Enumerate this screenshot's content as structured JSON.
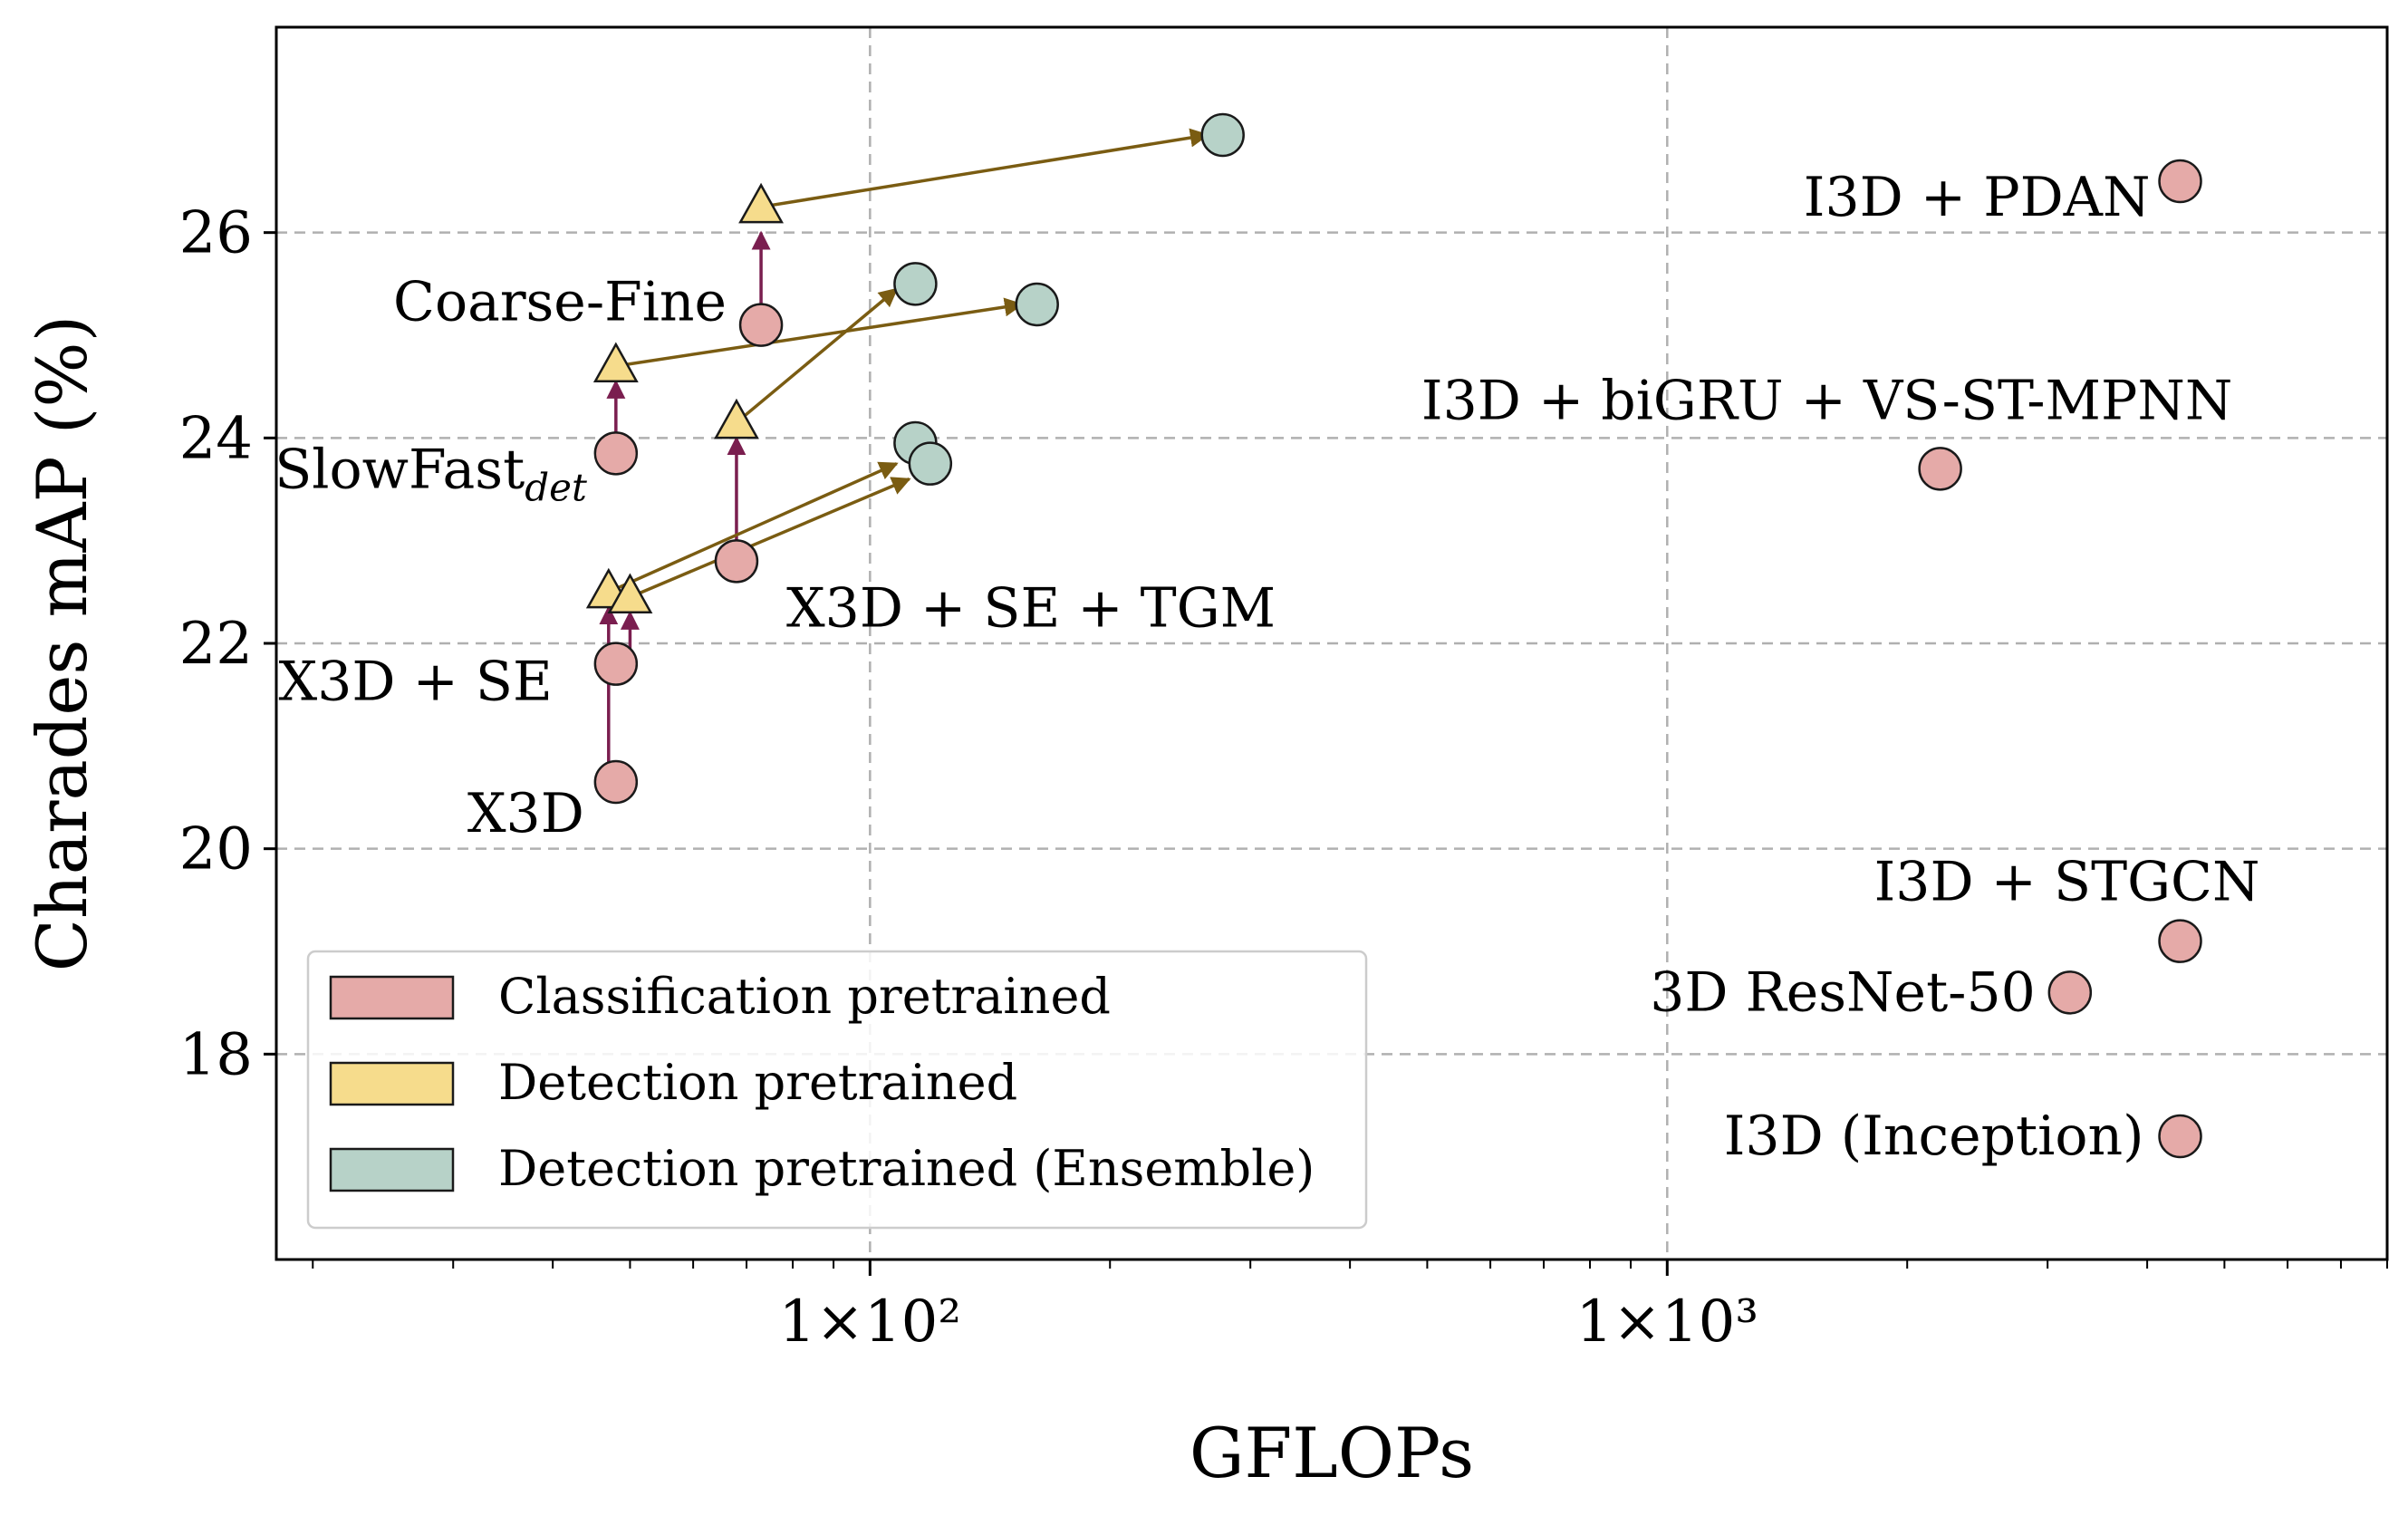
{
  "chart_data": {
    "type": "scatter",
    "xlabel": "GFLOPs",
    "ylabel": "Charades mAP (%)",
    "xscale": "log",
    "xlim": [
      18,
      8000
    ],
    "ylim": [
      16,
      28
    ],
    "x_ticks": [
      {
        "value": 100,
        "label": "1×10²"
      },
      {
        "value": 1000,
        "label": "1×10³"
      }
    ],
    "y_ticks": [
      18,
      20,
      22,
      24,
      26
    ],
    "grid": true,
    "legend_position": "lower-left",
    "colors": {
      "classification": "#e5aaa8",
      "detection": "#f6dc8c",
      "ensemble": "#b7d2c8",
      "arrow_up": "#7a1e4f",
      "arrow_ens": "#7a5c12"
    },
    "series": [
      {
        "name": "Classification pretrained",
        "marker": "circle",
        "points": [
          {
            "x": 48,
            "y": 20.65,
            "label": "X3D"
          },
          {
            "x": 48,
            "y": 21.8,
            "label": "X3D + SE"
          },
          {
            "x": 48,
            "y": 23.85,
            "label": "SlowFast",
            "label_sub": "det"
          },
          {
            "x": 68,
            "y": 22.8,
            "label": "X3D + SE + TGM"
          },
          {
            "x": 73,
            "y": 25.1,
            "label": "Coarse-Fine"
          },
          {
            "x": 2200,
            "y": 23.7,
            "label": "I3D + biGRU + VS-ST-MPNN"
          },
          {
            "x": 4400,
            "y": 26.5,
            "label": "I3D + PDAN"
          },
          {
            "x": 4400,
            "y": 19.1,
            "label": "I3D + STGCN"
          },
          {
            "x": 3200,
            "y": 18.6,
            "label": "3D ResNet-50"
          },
          {
            "x": 4400,
            "y": 17.2,
            "label": "I3D (Inception)"
          }
        ]
      },
      {
        "name": "Detection pretrained",
        "marker": "triangle",
        "points": [
          {
            "x": 47,
            "y": 22.5
          },
          {
            "x": 50,
            "y": 22.45
          },
          {
            "x": 48,
            "y": 24.7
          },
          {
            "x": 68,
            "y": 24.15
          },
          {
            "x": 73,
            "y": 26.25
          }
        ]
      },
      {
        "name": "Detection pretrained (Ensemble)",
        "marker": "circle",
        "points": [
          {
            "x": 114,
            "y": 23.95
          },
          {
            "x": 119,
            "y": 23.75
          },
          {
            "x": 114,
            "y": 25.5
          },
          {
            "x": 162,
            "y": 25.3
          },
          {
            "x": 277,
            "y": 26.95
          }
        ]
      }
    ],
    "arrows": [
      {
        "kind": "up",
        "from": [
          47,
          20.65
        ],
        "to": [
          47,
          22.35
        ]
      },
      {
        "kind": "up",
        "from": [
          50,
          21.8
        ],
        "to": [
          50,
          22.3
        ]
      },
      {
        "kind": "up",
        "from": [
          48,
          23.85
        ],
        "to": [
          48,
          24.55
        ]
      },
      {
        "kind": "up",
        "from": [
          68,
          22.8
        ],
        "to": [
          68,
          24.0
        ]
      },
      {
        "kind": "up",
        "from": [
          73,
          25.1
        ],
        "to": [
          73,
          26.0
        ]
      },
      {
        "kind": "ensemble",
        "from": [
          47,
          22.5
        ],
        "to": [
          108,
          23.75
        ]
      },
      {
        "kind": "ensemble",
        "from": [
          50,
          22.45
        ],
        "to": [
          112,
          23.6
        ]
      },
      {
        "kind": "ensemble",
        "from": [
          48,
          24.7
        ],
        "to": [
          155,
          25.3
        ]
      },
      {
        "kind": "ensemble",
        "from": [
          68,
          24.15
        ],
        "to": [
          108,
          25.45
        ]
      },
      {
        "kind": "ensemble",
        "from": [
          73,
          26.25
        ],
        "to": [
          265,
          26.95
        ]
      }
    ]
  }
}
